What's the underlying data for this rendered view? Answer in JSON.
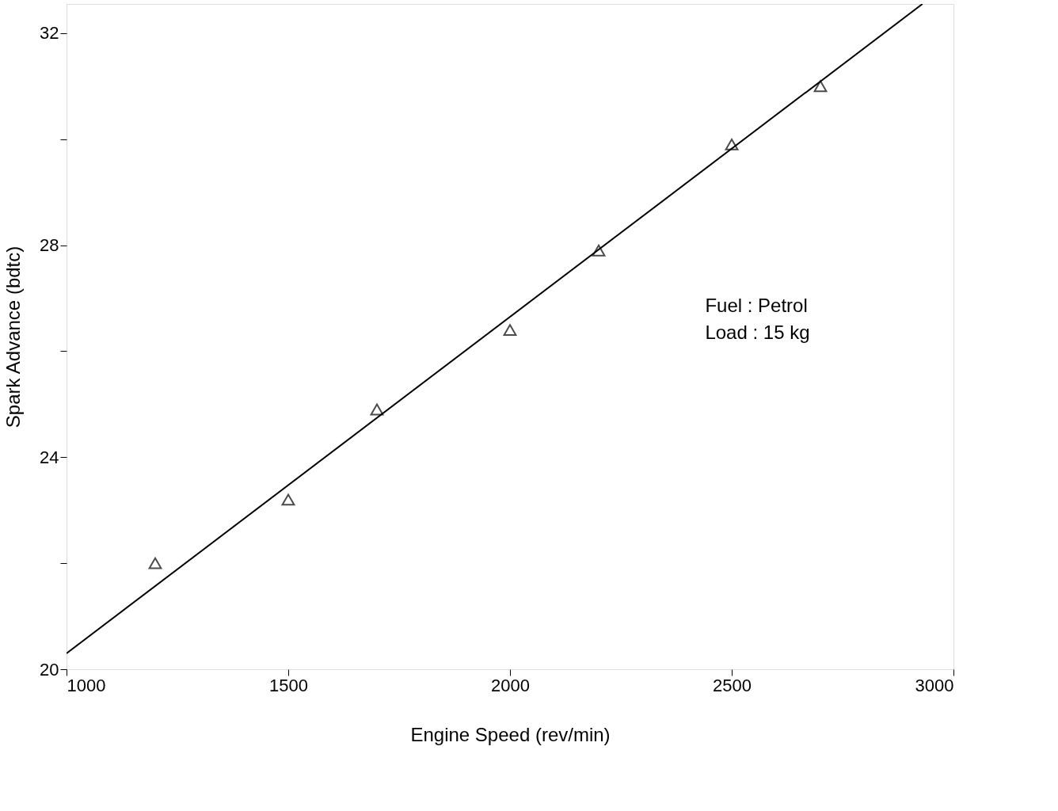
{
  "chart_data": {
    "type": "scatter",
    "xlabel": "Engine Speed (rev/min)",
    "ylabel": "Spark Advance (bdtc)",
    "xlim": [
      1000,
      3000
    ],
    "xticks": [
      1000,
      1500,
      2000,
      2500,
      3000
    ],
    "ylim": [
      20,
      32.55
    ],
    "yticks": [
      20,
      {
        "value": 22,
        "label": null
      },
      24,
      {
        "value": 26,
        "label": null
      },
      28,
      {
        "value": 30,
        "label": null
      },
      32
    ],
    "grid": false,
    "series": [
      {
        "color": "#000000",
        "marker": "triangle",
        "x": [
          1200,
          1500,
          1700,
          2000,
          2200,
          2500,
          2700
        ],
        "values": [
          22.0,
          23.2,
          24.9,
          26.4,
          27.9,
          29.9,
          31.0
        ]
      },
      {
        "type": "line",
        "color": "#000000",
        "x": [
          1000,
          2930
        ],
        "values": [
          20.3,
          32.55
        ],
        "line_style": "solid"
      }
    ],
    "annotations": [
      "Fuel : Petrol",
      "Load : 15 kg"
    ]
  }
}
